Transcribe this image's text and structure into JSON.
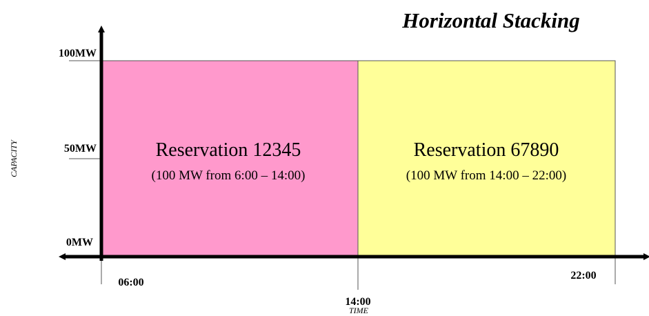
{
  "title": "Horizontal Stacking",
  "y_axis": {
    "label": "CAPACITY",
    "ticks": [
      "100MW",
      "50MW",
      "0MW"
    ]
  },
  "x_axis": {
    "label": "TIME",
    "ticks": [
      "06:00",
      "14:00",
      "22:00"
    ]
  },
  "blocks": [
    {
      "name": "Reservation 12345",
      "detail": "(100 MW from 6:00 – 14:00)"
    },
    {
      "name": "Reservation 67890",
      "detail": "(100 MW from 14:00 – 22:00)"
    }
  ]
}
